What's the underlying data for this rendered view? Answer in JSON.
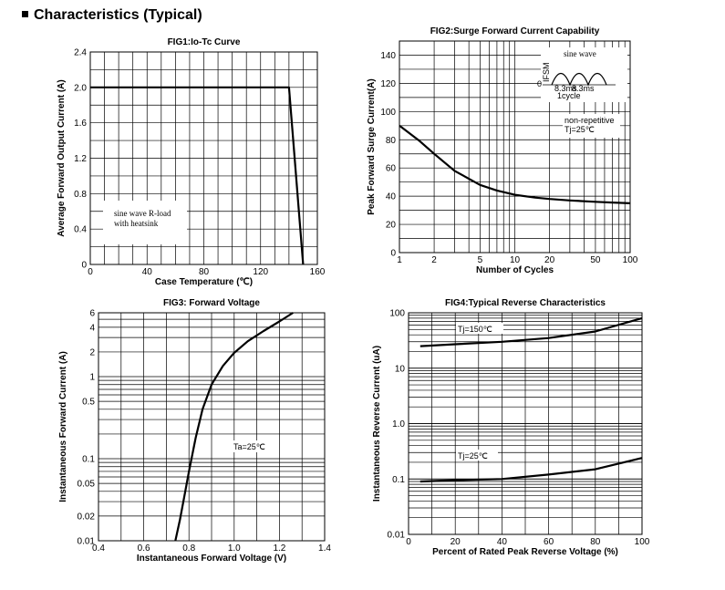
{
  "page": {
    "heading": "Characteristics (Typical)"
  },
  "chart_data": [
    {
      "type": "line",
      "title": "FIG1:Io-Tc Curve",
      "xlabel": "Case Temperature (℃)",
      "ylabel": "Average Forward Output Current (A)",
      "xlim": [
        0,
        160
      ],
      "ylim": [
        0,
        2.4
      ],
      "x_ticks": [
        "0",
        "40",
        "80",
        "120",
        "160"
      ],
      "y_ticks": [
        "0",
        "0.4",
        "0.8",
        "1.2",
        "1.6",
        "2.0",
        "2.4"
      ],
      "grid": true,
      "series": [
        {
          "x": [
            0,
            140,
            150
          ],
          "y": [
            2.0,
            2.0,
            0
          ]
        }
      ],
      "annotation": [
        "sine wave R-load",
        "with heatsink"
      ]
    },
    {
      "type": "line",
      "title": "FIG2:Surge Forward Current Capability",
      "xlabel": "Number of Cycles",
      "ylabel": "Peak Forward Surge Current(A)",
      "x_scale": "log",
      "xlim": [
        1,
        100
      ],
      "ylim": [
        0,
        150
      ],
      "x_ticks": [
        "1",
        "2",
        "5",
        "10",
        "20",
        "50",
        "100"
      ],
      "y_ticks": [
        "0",
        "20",
        "40",
        "60",
        "80",
        "100",
        "120",
        "140"
      ],
      "grid": true,
      "series": [
        {
          "x": [
            1,
            1.5,
            2,
            3,
            5,
            7,
            10,
            15,
            20,
            30,
            50,
            70,
            100
          ],
          "y": [
            90,
            79,
            70,
            58,
            48,
            44,
            41,
            39,
            38,
            37,
            36,
            35.5,
            35
          ]
        }
      ],
      "inset": {
        "label": "sine wave",
        "zero": "0",
        "ifsm": "IFSM",
        "t1": "8.3ms",
        "t2": "8.3ms",
        "cycle": "1cycle"
      },
      "annotation": [
        "non-repetitive",
        "Tj=25℃"
      ]
    },
    {
      "type": "line",
      "title": "FIG3: Forward Voltage",
      "xlabel": "Instantaneous Forward Voltage (V)",
      "ylabel": "Instantaneous Forward Current (A)",
      "y_scale": "log",
      "xlim": [
        0.4,
        1.4
      ],
      "ylim": [
        0.01,
        6
      ],
      "x_ticks": [
        "0.4",
        "0.6",
        "0.8",
        "1.0",
        "1.2",
        "1.4"
      ],
      "y_ticks": [
        "0.01",
        "0.02",
        "0.05",
        "0.1",
        "0.5",
        "1",
        "2",
        "4",
        "6"
      ],
      "grid": true,
      "series": [
        {
          "x": [
            0.74,
            0.76,
            0.78,
            0.8,
            0.83,
            0.86,
            0.9,
            0.95,
            1.0,
            1.06,
            1.13,
            1.2,
            1.26
          ],
          "y": [
            0.01,
            0.018,
            0.035,
            0.07,
            0.18,
            0.4,
            0.8,
            1.35,
            1.95,
            2.7,
            3.6,
            4.7,
            6.0
          ]
        }
      ],
      "annotation": [
        "Ta=25℃"
      ]
    },
    {
      "type": "line",
      "title": "FIG4:Typical Reverse Characteristics",
      "xlabel": "Percent of Rated Peak Reverse Voltage  (%)",
      "ylabel": "Instantaneous Reverse Current (uA)",
      "y_scale": "log",
      "xlim": [
        0,
        100
      ],
      "ylim": [
        0.01,
        100
      ],
      "x_ticks": [
        "0",
        "20",
        "40",
        "60",
        "80",
        "100"
      ],
      "y_ticks": [
        "0.01",
        "0.1",
        "1.0",
        "10",
        "100"
      ],
      "grid": true,
      "series": [
        {
          "name": "Tj=150℃",
          "x": [
            5,
            20,
            40,
            60,
            80,
            100
          ],
          "y": [
            25,
            27,
            30,
            35,
            46,
            80
          ]
        },
        {
          "name": "Tj=25℃",
          "x": [
            5,
            20,
            40,
            60,
            80,
            100
          ],
          "y": [
            0.09,
            0.095,
            0.1,
            0.12,
            0.15,
            0.24
          ]
        }
      ]
    }
  ]
}
